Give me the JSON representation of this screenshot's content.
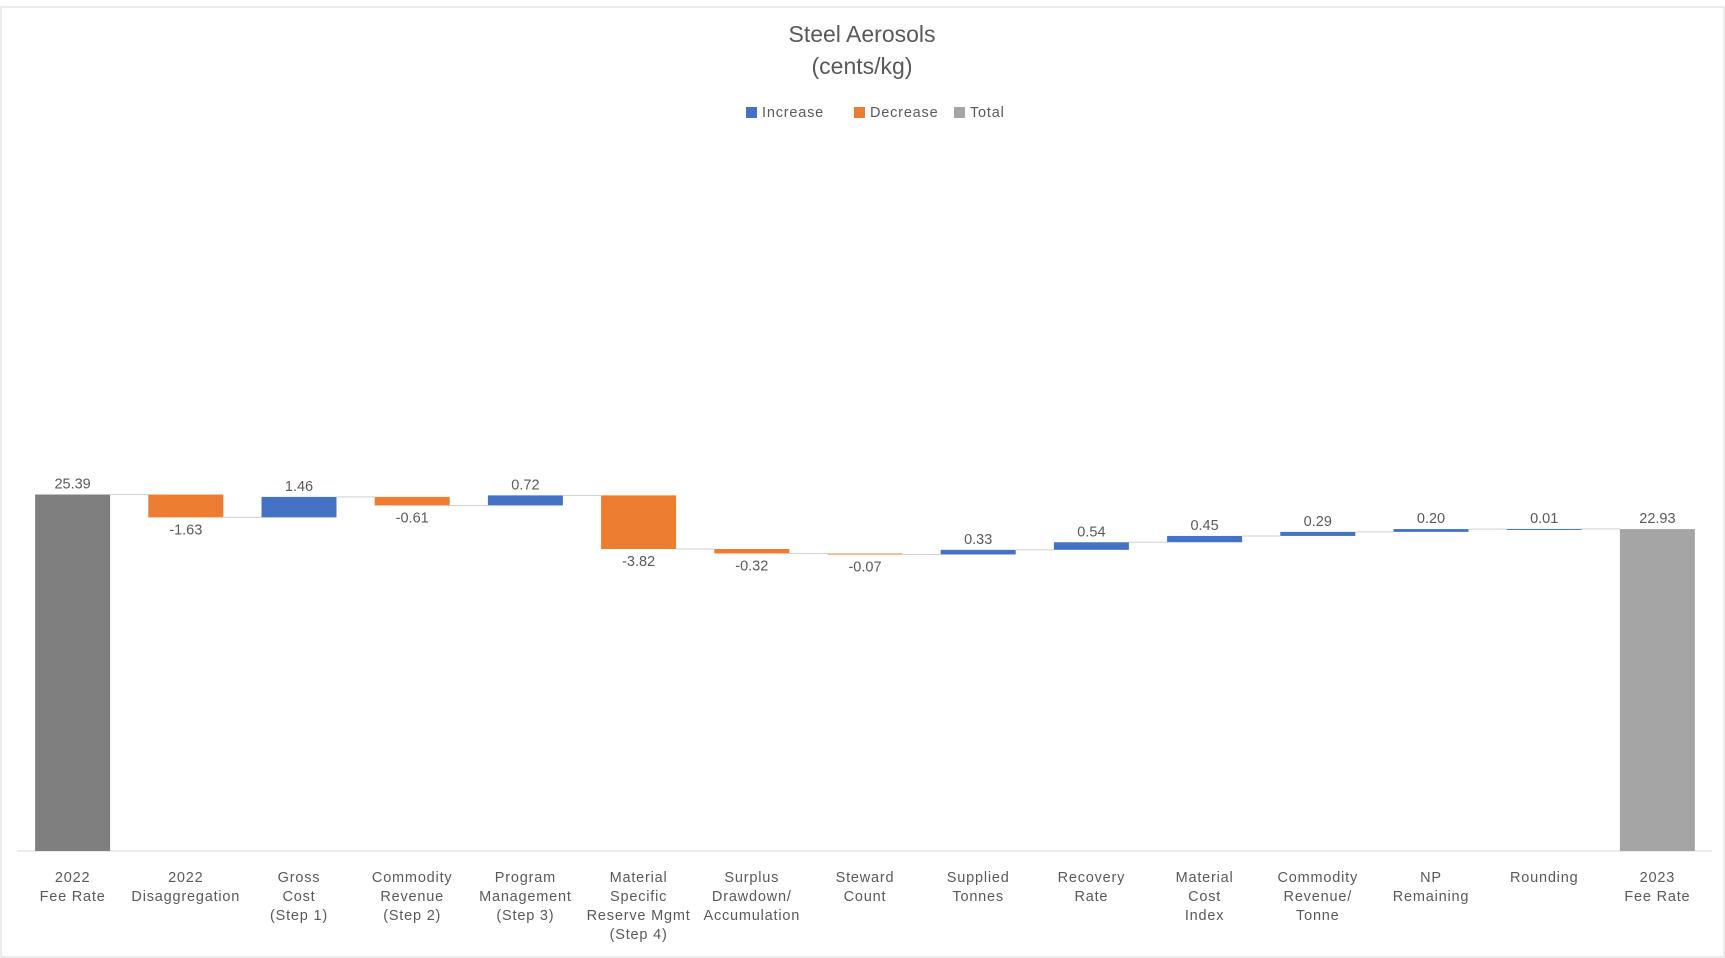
{
  "chart_data": {
    "type": "waterfall",
    "title": [
      "Steel Aerosols",
      "(cents/kg)"
    ],
    "categories": [
      [
        "2022",
        "Fee Rate"
      ],
      [
        "2022",
        "Disaggregation"
      ],
      [
        "Gross",
        "Cost",
        "(Step 1)"
      ],
      [
        "Commodity",
        "Revenue",
        "(Step 2)"
      ],
      [
        "Program",
        "Management",
        "(Step 3)"
      ],
      [
        "Material",
        "Specific",
        "Reserve Mgmt",
        "(Step 4)"
      ],
      [
        "Surplus",
        "Drawdown/",
        "Accumulation"
      ],
      [
        "Steward",
        "Count"
      ],
      [
        "Supplied",
        "Tonnes"
      ],
      [
        "Recovery",
        "Rate"
      ],
      [
        "Material",
        "Cost",
        "Index"
      ],
      [
        "Commodity",
        "Revenue/",
        "Tonne"
      ],
      [
        "NP",
        "Remaining"
      ],
      [
        "Rounding"
      ],
      [
        "2023",
        "Fee Rate"
      ]
    ],
    "values": [
      25.39,
      -1.63,
      1.46,
      -0.61,
      0.72,
      -3.82,
      -0.32,
      -0.07,
      0.33,
      0.54,
      0.45,
      0.29,
      0.2,
      0.01,
      22.93
    ],
    "value_labels": [
      "25.39",
      "-1.63",
      "1.46",
      "-0.61",
      "0.72",
      "-3.82",
      "-0.32",
      "-0.07",
      "0.33",
      "0.54",
      "0.45",
      "0.29",
      "0.20",
      "0.01",
      "22.93"
    ],
    "totals": [
      0,
      14
    ],
    "colors": [
      "#7f7f7f",
      "#ed7d31",
      "#4472c4",
      "#ed7d31",
      "#4472c4",
      "#ed7d31",
      "#ed7d31",
      "#ed7d31",
      "#4472c4",
      "#4472c4",
      "#4472c4",
      "#4472c4",
      "#4472c4",
      "#4472c4",
      "#a5a5a5"
    ],
    "legend": [
      {
        "name": "Increase",
        "color": "#4472c4"
      },
      {
        "name": "Decrease",
        "color": "#ed7d31"
      },
      {
        "name": "Total",
        "color": "#a5a5a5"
      }
    ],
    "legend_position": "top",
    "ylim": [
      0,
      50
    ]
  }
}
